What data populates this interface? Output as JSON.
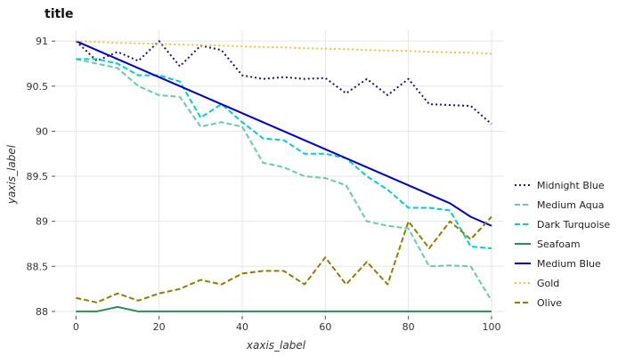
{
  "chart_data": {
    "type": "line",
    "title": "title",
    "xlabel": "xaxis_label",
    "ylabel": "yaxis_label",
    "xlim": [
      -5,
      103
    ],
    "ylim": [
      87.95,
      91.12
    ],
    "xticks": [
      0,
      20,
      40,
      60,
      80,
      100
    ],
    "yticks": [
      88,
      88.5,
      89,
      89.5,
      90,
      90.5,
      91
    ],
    "ytick_labels": [
      "88",
      "88.5",
      "89",
      "89.5",
      "90",
      "90.5",
      "91"
    ],
    "grid": true,
    "legend_position": "right",
    "x": [
      0,
      5,
      10,
      15,
      20,
      25,
      30,
      35,
      40,
      45,
      50,
      55,
      60,
      65,
      70,
      75,
      80,
      85,
      90,
      95,
      100
    ],
    "series": [
      {
        "name": "Midnight Blue",
        "color": "#191970",
        "dash": "2,3",
        "values": [
          91.0,
          90.78,
          90.88,
          90.78,
          91.0,
          90.72,
          90.95,
          90.9,
          90.62,
          90.58,
          90.6,
          90.58,
          90.59,
          90.42,
          90.58,
          90.4,
          90.58,
          90.3,
          90.29,
          90.28,
          90.08
        ]
      },
      {
        "name": "Medium Aqua",
        "color": "#66CDAA",
        "dash": "6,3",
        "values": [
          90.8,
          90.75,
          90.7,
          90.5,
          90.4,
          90.38,
          90.05,
          90.1,
          90.05,
          89.65,
          89.6,
          89.5,
          89.48,
          89.4,
          89.0,
          88.95,
          88.92,
          88.5,
          88.51,
          88.5,
          88.12
        ]
      },
      {
        "name": "Dark Turquoise",
        "color": "#00CED1",
        "dash": "6,3",
        "values": [
          90.8,
          90.8,
          90.75,
          90.62,
          90.62,
          90.55,
          90.15,
          90.3,
          90.1,
          89.92,
          89.9,
          89.75,
          89.75,
          89.7,
          89.5,
          89.35,
          89.15,
          89.15,
          89.12,
          88.72,
          88.7
        ]
      },
      {
        "name": "Medium Blue",
        "color": "#0000CD",
        "dash": "",
        "values": [
          91.0,
          90.9,
          90.8,
          90.7,
          90.6,
          90.5,
          90.4,
          90.3,
          90.2,
          90.1,
          90.0,
          89.9,
          89.8,
          89.7,
          89.6,
          89.5,
          89.4,
          89.3,
          89.2,
          89.05,
          88.95
        ]
      },
      {
        "name": "Gold",
        "color": "#F0C23C",
        "dash": "2,3",
        "values": [
          91.0,
          90.99,
          90.98,
          90.975,
          90.97,
          90.96,
          90.955,
          90.95,
          90.94,
          90.935,
          90.93,
          90.92,
          90.915,
          90.91,
          90.9,
          90.895,
          90.89,
          90.88,
          90.875,
          90.87,
          90.86
        ]
      },
      {
        "name": "Olive",
        "color": "#8B8000",
        "dash": "6,3",
        "values": [
          88.15,
          88.1,
          88.2,
          88.12,
          88.2,
          88.25,
          88.35,
          88.3,
          88.42,
          88.45,
          88.45,
          88.3,
          88.6,
          88.3,
          88.55,
          88.3,
          89.0,
          88.7,
          89.0,
          88.8,
          89.05
        ]
      },
      {
        "name": "Seafoam",
        "color": "#2E8B57",
        "dash": "",
        "values": [
          88.0,
          88.0,
          88.05,
          88.0,
          88.0,
          88.0,
          88.0,
          88.0,
          88.0,
          88.0,
          88.0,
          88.0,
          88.0,
          88.0,
          88.0,
          88.0,
          88.0,
          88.0,
          88.0,
          88.0,
          88.0
        ]
      }
    ]
  }
}
